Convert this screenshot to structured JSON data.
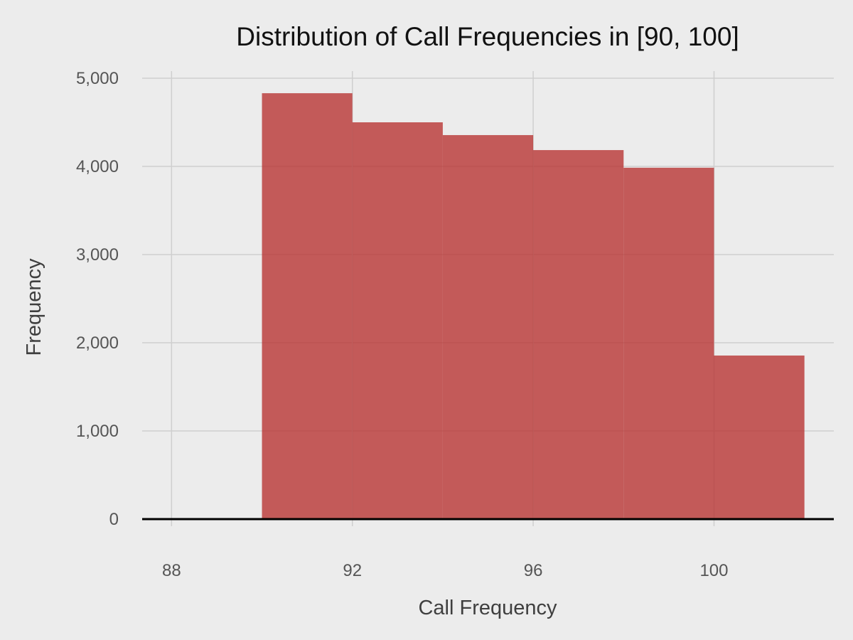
{
  "chart_data": {
    "type": "bar",
    "title": "Distribution of Call Frequencies in [90, 100]",
    "xlabel": "Call Frequency",
    "ylabel": "Frequency",
    "bins": [
      {
        "x0": 90,
        "x1": 92,
        "value": 4830
      },
      {
        "x0": 92,
        "x1": 94,
        "value": 4500
      },
      {
        "x0": 94,
        "x1": 96,
        "value": 4355
      },
      {
        "x0": 96,
        "x1": 98,
        "value": 4185
      },
      {
        "x0": 98,
        "x1": 100,
        "value": 3985
      },
      {
        "x0": 100,
        "x1": 102,
        "value": 1855
      }
    ],
    "xlim": [
      87.35,
      102.65
    ],
    "ylim": [
      0,
      5000
    ],
    "xticks": [
      88,
      92,
      96,
      100
    ],
    "xtick_labels": [
      "88",
      "92",
      "96",
      "100"
    ],
    "yticks": [
      0,
      1000,
      2000,
      3000,
      4000,
      5000
    ],
    "ytick_labels": [
      "0",
      "1,000",
      "2,000",
      "3,000",
      "4,000",
      "5,000"
    ],
    "grid": true,
    "legend": "none",
    "colors": {
      "background": "#ececec",
      "bar": "#b52a28",
      "bar_opacity": 0.75,
      "grid": "#cfcfcf",
      "baseline": "#000000"
    }
  }
}
